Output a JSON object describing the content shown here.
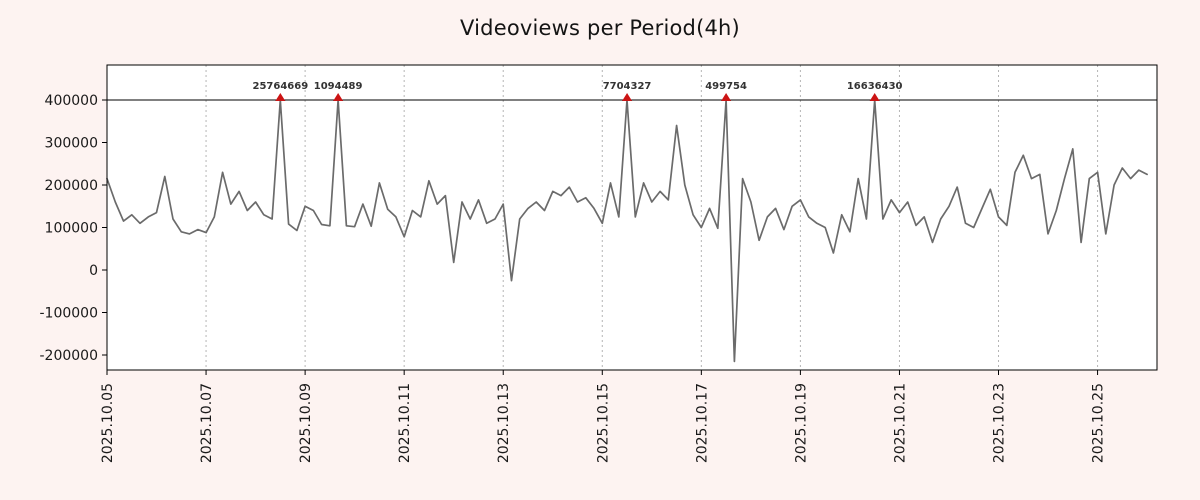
{
  "chart_data": {
    "type": "line",
    "title": "Videoviews per Period(4h)",
    "xlabel": "",
    "ylabel": "",
    "start_date": "2025.10.05",
    "period_hours": 4,
    "points_per_day": 6,
    "cap_line_value": 400000,
    "ylim": [
      -235000,
      482000
    ],
    "grid": "vertical-dashed",
    "legend": "none",
    "x_tick_labels": [
      "2025.10.05",
      "2025.10.07",
      "2025.10.09",
      "2025.10.11",
      "2025.10.13",
      "2025.10.15",
      "2025.10.17",
      "2025.10.19",
      "2025.10.21",
      "2025.10.23",
      "2025.10.25"
    ],
    "x_tick_days": [
      0,
      2,
      4,
      6,
      8,
      10,
      12,
      14,
      16,
      18,
      20
    ],
    "y_ticks": [
      -200000,
      -100000,
      0,
      100000,
      200000,
      300000,
      400000
    ],
    "values": [
      215000,
      160000,
      115000,
      130000,
      110000,
      125000,
      135000,
      220000,
      120000,
      90000,
      85000,
      95000,
      88000,
      125000,
      230000,
      155000,
      185000,
      140000,
      160000,
      130000,
      120000,
      400000,
      108000,
      93000,
      150000,
      140000,
      107000,
      104000,
      400000,
      104000,
      102000,
      155000,
      103000,
      205000,
      143000,
      125000,
      78000,
      140000,
      125000,
      210000,
      155000,
      175000,
      18000,
      160000,
      120000,
      165000,
      110000,
      120000,
      155000,
      -25000,
      120000,
      145000,
      160000,
      140000,
      185000,
      175000,
      195000,
      160000,
      170000,
      145000,
      110000,
      205000,
      125000,
      400000,
      125000,
      205000,
      160000,
      185000,
      165000,
      340000,
      200000,
      130000,
      100000,
      145000,
      98000,
      400000,
      -215000,
      215000,
      160000,
      70000,
      125000,
      145000,
      95000,
      150000,
      165000,
      125000,
      110000,
      100000,
      40000,
      130000,
      90000,
      215000,
      120000,
      400000,
      120000,
      165000,
      135000,
      160000,
      105000,
      125000,
      65000,
      120000,
      150000,
      195000,
      110000,
      100000,
      145000,
      190000,
      125000,
      105000,
      230000,
      270000,
      215000,
      225000,
      85000,
      140000,
      215000,
      285000,
      65000,
      215000,
      230000,
      85000,
      200000,
      240000,
      215000,
      235000,
      225000
    ],
    "spikes": [
      {
        "index": 21,
        "label": "25764669"
      },
      {
        "index": 28,
        "label": "1094489"
      },
      {
        "index": 63,
        "label": "7704327"
      },
      {
        "index": 75,
        "label": "499754"
      },
      {
        "index": 93,
        "label": "16636430"
      }
    ],
    "colors": {
      "line": "#6b6b6b",
      "marker": "#cc1414",
      "background": "#fdf3f1",
      "plot_background": "#ffffff",
      "grid": "#b5b5b5",
      "annotation": "#333333",
      "axis": "#000000"
    }
  }
}
